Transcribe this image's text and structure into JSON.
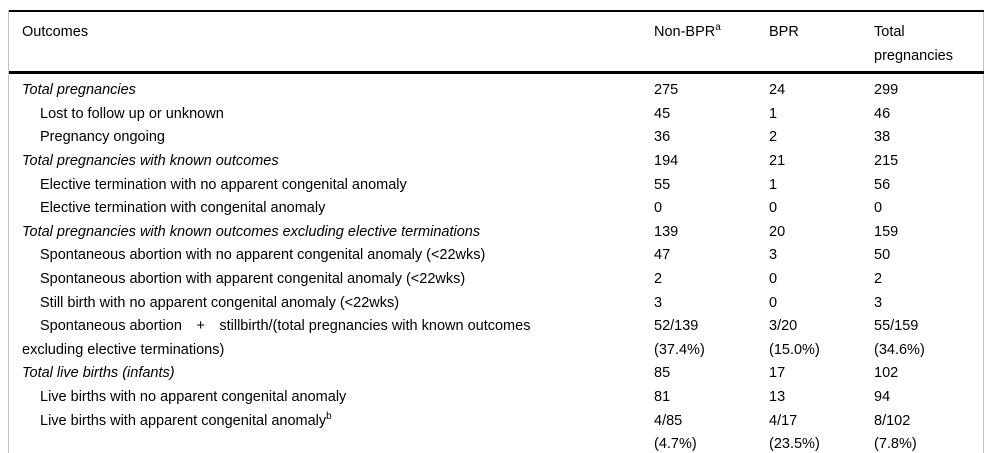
{
  "table": {
    "columns": [
      {
        "label": "Outcomes",
        "sup": ""
      },
      {
        "label": "Non-BPR",
        "sup": "a"
      },
      {
        "label": "BPR",
        "sup": ""
      },
      {
        "label": "Total\npregnancies",
        "sup": ""
      }
    ],
    "rows": [
      {
        "label": "Total pregnancies",
        "sup": "",
        "style": "category",
        "non_bpr": "275",
        "bpr": "24",
        "total": "299"
      },
      {
        "label": "Lost to follow up or unknown",
        "sup": "",
        "style": "sub",
        "non_bpr": "45",
        "bpr": "1",
        "total": "46"
      },
      {
        "label": "Pregnancy ongoing",
        "sup": "",
        "style": "sub",
        "non_bpr": "36",
        "bpr": "2",
        "total": "38"
      },
      {
        "label": "Total pregnancies with known outcomes",
        "sup": "",
        "style": "category",
        "non_bpr": "194",
        "bpr": "21",
        "total": "215"
      },
      {
        "label": "Elective termination with no apparent congenital anomaly",
        "sup": "",
        "style": "sub",
        "non_bpr": "55",
        "bpr": "1",
        "total": "56"
      },
      {
        "label": "Elective termination with congenital anomaly",
        "sup": "",
        "style": "sub",
        "non_bpr": "0",
        "bpr": "0",
        "total": "0"
      },
      {
        "label": "Total pregnancies with known outcomes excluding elective terminations",
        "sup": "",
        "style": "category",
        "non_bpr": "139",
        "bpr": "20",
        "total": "159"
      },
      {
        "label": "Spontaneous abortion with no apparent congenital anomaly (<22wks)",
        "sup": "",
        "style": "sub",
        "non_bpr": "47",
        "bpr": "3",
        "total": "50"
      },
      {
        "label": "Spontaneous abortion with apparent congenital anomaly (<22wks)",
        "sup": "",
        "style": "sub",
        "non_bpr": "2",
        "bpr": "0",
        "total": "2"
      },
      {
        "label": "Still birth with no apparent congenital anomaly (<22wks)",
        "sup": "",
        "style": "sub",
        "non_bpr": "3",
        "bpr": "0",
        "total": "3"
      },
      {
        "label": "Spontaneous abortion + stillbirth/(total pregnancies with known outcomes\nexcluding elective terminations)",
        "sup": "",
        "style": "sub",
        "non_bpr": "52/139\n(37.4%)",
        "bpr": "3/20\n(15.0%)",
        "total": "55/159\n(34.6%)"
      },
      {
        "label": "Total live births (infants)",
        "sup": "",
        "style": "category",
        "non_bpr": "85",
        "bpr": "17",
        "total": "102"
      },
      {
        "label": "Live births with no apparent congenital anomaly",
        "sup": "",
        "style": "sub",
        "non_bpr": "81",
        "bpr": "13",
        "total": "94"
      },
      {
        "label": "Live births with apparent congenital anomaly",
        "sup": "b",
        "style": "sub",
        "non_bpr": "4/85\n(4.7%)",
        "bpr": "4/17\n(23.5%)",
        "total": "8/102\n(7.8%)"
      }
    ]
  }
}
